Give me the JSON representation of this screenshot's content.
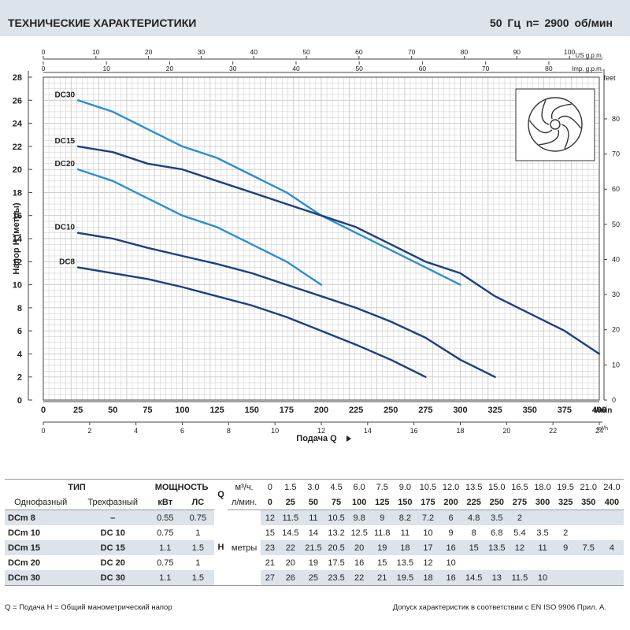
{
  "header": {
    "title": "ТЕХНИЧЕСКИЕ ХАРАКТЕРИСТИКИ",
    "speed": "50 Гц   n= 2900 об/мин"
  },
  "chart_data": {
    "type": "line",
    "title": "ТЕХНИЧЕСКИЕ ХАРАКТЕРИСТИКИ",
    "xlabel": "Подача Q",
    "ylabel": "Напор H (метры)",
    "x_unit_main": "l/min",
    "xlim": [
      0,
      400
    ],
    "ylim": [
      0,
      28
    ],
    "y_ticks": [
      0,
      2,
      4,
      6,
      8,
      10,
      12,
      14,
      16,
      18,
      20,
      22,
      24,
      26,
      28
    ],
    "x_ticks_lmin": [
      0,
      25,
      50,
      75,
      100,
      125,
      150,
      175,
      200,
      225,
      250,
      275,
      300,
      325,
      350,
      375,
      400
    ],
    "x_ticks_m3h": [
      0,
      2,
      4,
      6,
      8,
      10,
      12,
      14,
      16,
      18,
      20,
      22,
      24
    ],
    "x_label_m3h": "m³/h",
    "x_ticks_usgpm": [
      0,
      10,
      20,
      30,
      40,
      50,
      60,
      70,
      80,
      90,
      100
    ],
    "x_label_usgpm": "US g.p.m.",
    "x_ticks_impgpm": [
      0,
      10,
      20,
      30,
      40,
      50,
      60,
      70,
      80
    ],
    "x_label_impgpm": "Imp. g.p.m.",
    "y2_ticks_feet": [
      0,
      10,
      20,
      30,
      40,
      50,
      60,
      70,
      80
    ],
    "y2_label": "feet",
    "series": [
      {
        "name": "DC30",
        "color": "#2a8fd0",
        "x": [
          25,
          50,
          75,
          100,
          125,
          150,
          175,
          200,
          225,
          250,
          275,
          300
        ],
        "y": [
          26,
          25,
          23.5,
          22,
          21,
          19.5,
          18,
          16,
          14.5,
          13,
          11.5,
          10
        ]
      },
      {
        "name": "DC15",
        "color": "#1c3f7f",
        "x": [
          25,
          50,
          75,
          100,
          125,
          150,
          175,
          200,
          225,
          250,
          275,
          300,
          325,
          350,
          375,
          400
        ],
        "y": [
          22,
          21.5,
          20.5,
          20,
          19,
          18,
          17,
          16,
          15,
          13.5,
          12,
          11,
          9,
          7.5,
          6,
          4
        ]
      },
      {
        "name": "DC20",
        "color": "#2a8fd0",
        "x": [
          25,
          50,
          75,
          100,
          125,
          150,
          175,
          200
        ],
        "y": [
          20,
          19,
          17.5,
          16,
          15,
          13.5,
          12,
          10
        ]
      },
      {
        "name": "DC10",
        "color": "#1c3f7f",
        "x": [
          25,
          50,
          75,
          100,
          125,
          150,
          175,
          200,
          225,
          250,
          275,
          300,
          325
        ],
        "y": [
          14.5,
          14,
          13.2,
          12.5,
          11.8,
          11,
          10,
          9,
          8,
          6.8,
          5.4,
          3.5,
          2
        ]
      },
      {
        "name": "DC8",
        "color": "#1c3f7f",
        "x": [
          25,
          50,
          75,
          100,
          125,
          150,
          175,
          200,
          225,
          250,
          275
        ],
        "y": [
          11.5,
          11,
          10.5,
          9.8,
          9,
          8.2,
          7.2,
          6,
          4.8,
          3.5,
          2
        ]
      }
    ]
  },
  "table": {
    "h_type": "ТИП",
    "h_power": "МОЩНОСТЬ",
    "h_q": "Q",
    "u_m3h": "м³/ч.",
    "u_lmin": "л/мин.",
    "h_single": "Однофазный",
    "h_three": "Трехфазный",
    "h_kw": "кВт",
    "h_hp": "ЛС",
    "h_h": "H",
    "h_m": "метры",
    "q_m3h": [
      "0",
      "1.5",
      "3.0",
      "4.5",
      "6.0",
      "7.5",
      "9.0",
      "10.5",
      "12.0",
      "13.5",
      "15.0",
      "16.5",
      "18.0",
      "19.5",
      "21.0",
      "24.0"
    ],
    "q_lmin": [
      "0",
      "25",
      "50",
      "75",
      "100",
      "125",
      "150",
      "175",
      "200",
      "225",
      "250",
      "275",
      "300",
      "325",
      "350",
      "400"
    ],
    "rows": [
      {
        "single": "DCm 8",
        "three": "–",
        "kw": "0.55",
        "hp": "0.75",
        "h": [
          "12",
          "11.5",
          "11",
          "10.5",
          "9.8",
          "9",
          "8.2",
          "7.2",
          "6",
          "4.8",
          "3.5",
          "2",
          "",
          "",
          "",
          ""
        ]
      },
      {
        "single": "DCm 10",
        "three": "DC 10",
        "kw": "0.75",
        "hp": "1",
        "h": [
          "15",
          "14.5",
          "14",
          "13.2",
          "12.5",
          "11.8",
          "11",
          "10",
          "9",
          "8",
          "6.8",
          "5.4",
          "3.5",
          "2",
          "",
          ""
        ]
      },
      {
        "single": "DCm 15",
        "three": "DC 15",
        "kw": "1.1",
        "hp": "1.5",
        "h": [
          "23",
          "22",
          "21.5",
          "20.5",
          "20",
          "19",
          "18",
          "17",
          "16",
          "15",
          "13.5",
          "12",
          "11",
          "9",
          "7.5",
          "4"
        ]
      },
      {
        "single": "DCm 20",
        "three": "DC 20",
        "kw": "0.75",
        "hp": "1",
        "h": [
          "21",
          "20",
          "19",
          "17.5",
          "16",
          "15",
          "13.5",
          "12",
          "10",
          "",
          "",
          "",
          "",
          "",
          "",
          ""
        ]
      },
      {
        "single": "DCm 30",
        "three": "DC 30",
        "kw": "1.1",
        "hp": "1.5",
        "h": [
          "27",
          "26",
          "25",
          "23.5",
          "22",
          "21",
          "19.5",
          "18",
          "16",
          "14.5",
          "13",
          "11.5",
          "10",
          "",
          "",
          ""
        ]
      }
    ]
  },
  "footer": {
    "left": "Q = Подача   H = Общий манометрический напор",
    "right": "Допуск характеристик в соответствии с EN ISO 9906 Прил. А."
  },
  "icons": {
    "impeller": "impeller-icon",
    "arrow": "arrow-right-icon"
  }
}
